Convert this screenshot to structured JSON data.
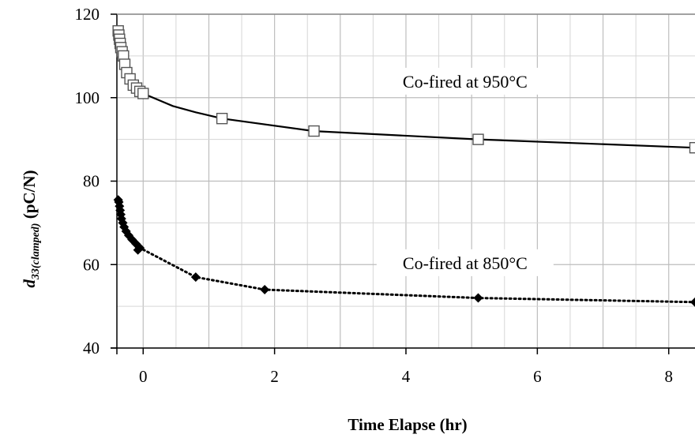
{
  "chart_data": {
    "type": "line",
    "title": "",
    "xlabel": "Time Elapse (hr)",
    "ylabel": {
      "prefix": "d",
      "subscript": "33(clamped)",
      "suffix": " (pC/N)"
    },
    "xlim": [
      -0.4,
      8.4
    ],
    "ylim": [
      40,
      120
    ],
    "xticks": [
      0,
      2,
      4,
      6,
      8
    ],
    "yticks": [
      40,
      60,
      80,
      100,
      120
    ],
    "grid": true,
    "series": [
      {
        "name": "Co-fired at 950°C",
        "marker": "open-square",
        "line": "solid",
        "color": "#000000",
        "points": [
          {
            "x": -0.38,
            "y": 116
          },
          {
            "x": -0.37,
            "y": 115
          },
          {
            "x": -0.36,
            "y": 114
          },
          {
            "x": -0.35,
            "y": 113
          },
          {
            "x": -0.34,
            "y": 112
          },
          {
            "x": -0.32,
            "y": 111
          },
          {
            "x": -0.3,
            "y": 110
          },
          {
            "x": -0.28,
            "y": 108
          },
          {
            "x": -0.25,
            "y": 106
          },
          {
            "x": -0.2,
            "y": 104.5
          },
          {
            "x": -0.15,
            "y": 103
          },
          {
            "x": -0.1,
            "y": 102.3
          },
          {
            "x": -0.05,
            "y": 101.5
          },
          {
            "x": 0.0,
            "y": 101
          },
          {
            "x": 0.45,
            "y": 98
          },
          {
            "x": 0.8,
            "y": 96.5
          },
          {
            "x": 1.2,
            "y": 95
          },
          {
            "x": 2.6,
            "y": 92
          },
          {
            "x": 5.1,
            "y": 90
          },
          {
            "x": 8.4,
            "y": 88
          }
        ],
        "marked": [
          0,
          1,
          2,
          3,
          4,
          5,
          6,
          7,
          8,
          9,
          10,
          11,
          12,
          13,
          16,
          17,
          18,
          19
        ]
      },
      {
        "name": "Co-fired at 850°C",
        "marker": "filled-diamond",
        "line": "dotted",
        "color": "#000000",
        "points": [
          {
            "x": -0.38,
            "y": 75.5
          },
          {
            "x": -0.37,
            "y": 75
          },
          {
            "x": -0.36,
            "y": 74
          },
          {
            "x": -0.35,
            "y": 73
          },
          {
            "x": -0.34,
            "y": 72
          },
          {
            "x": -0.33,
            "y": 71
          },
          {
            "x": -0.31,
            "y": 70
          },
          {
            "x": -0.29,
            "y": 69
          },
          {
            "x": -0.26,
            "y": 68
          },
          {
            "x": -0.22,
            "y": 67
          },
          {
            "x": -0.17,
            "y": 66
          },
          {
            "x": -0.11,
            "y": 65
          },
          {
            "x": -0.05,
            "y": 64
          },
          {
            "x": -0.08,
            "y": 63.5
          },
          {
            "x": 0.8,
            "y": 57
          },
          {
            "x": 1.85,
            "y": 54
          },
          {
            "x": 5.1,
            "y": 52
          },
          {
            "x": 8.4,
            "y": 51
          }
        ]
      }
    ],
    "annotations": [
      {
        "text": "Co-fired at 950°C",
        "x": 4.9,
        "y": 103
      },
      {
        "text": "Co-fired at 850°C",
        "x": 4.9,
        "y": 59.5
      }
    ]
  }
}
